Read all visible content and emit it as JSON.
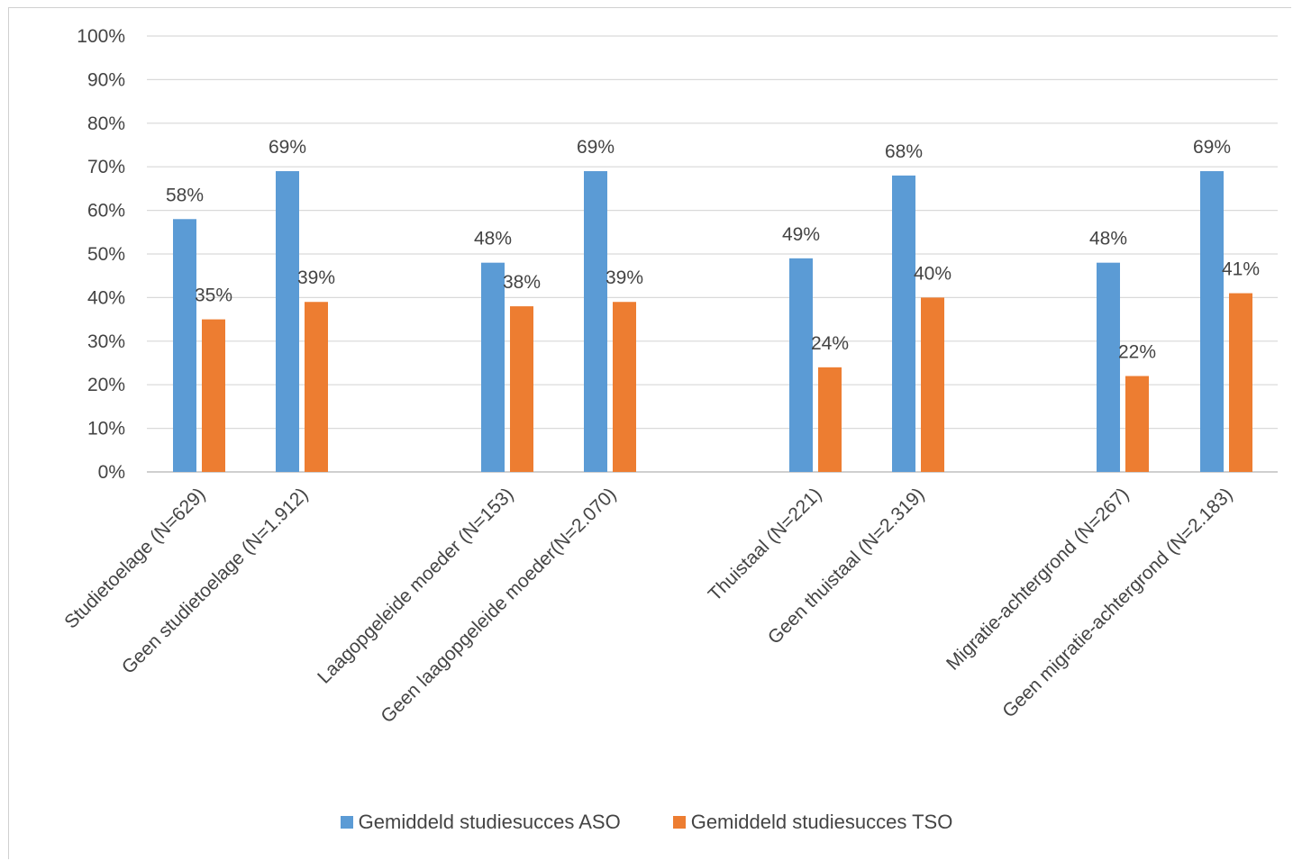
{
  "chart_data": {
    "type": "bar",
    "categories": [
      "Studietoelage (N=629)",
      "Geen studietoelage (N=1.912)",
      "Laagopgeleide moeder (N=153)",
      "Geen laagopgeleide moeder(N=2.070)",
      "Thuistaal (N=221)",
      "Geen thuistaal (N=2.319)",
      "Migratie-achtergrond (N=267)",
      "Geen migratie-achtergrond (N=2.183)"
    ],
    "series": [
      {
        "name": "Gemiddeld studiesucces ASO",
        "color": "#5b9bd5",
        "values": [
          58,
          69,
          48,
          69,
          49,
          68,
          48,
          69
        ]
      },
      {
        "name": "Gemiddeld studiesucces TSO",
        "color": "#ed7d31",
        "values": [
          35,
          39,
          38,
          39,
          24,
          40,
          22,
          41
        ]
      }
    ],
    "data_labels": {
      "aso": [
        "58%",
        "69%",
        "48%",
        "69%",
        "49%",
        "68%",
        "48%",
        "69%"
      ],
      "tso": [
        "35%",
        "39%",
        "38%",
        "39%",
        "24%",
        "40%",
        "22%",
        "41%"
      ]
    },
    "y_ticks": [
      "0%",
      "10%",
      "20%",
      "30%",
      "40%",
      "50%",
      "60%",
      "70%",
      "80%",
      "90%",
      "100%"
    ],
    "ylim": [
      0,
      100
    ],
    "grid": true,
    "legend_position": "bottom",
    "xlabel": "",
    "ylabel": "",
    "title": ""
  },
  "legend": {
    "aso_label": "Gemiddeld studiesucces ASO",
    "tso_label": "Gemiddeld studiesucces TSO"
  }
}
